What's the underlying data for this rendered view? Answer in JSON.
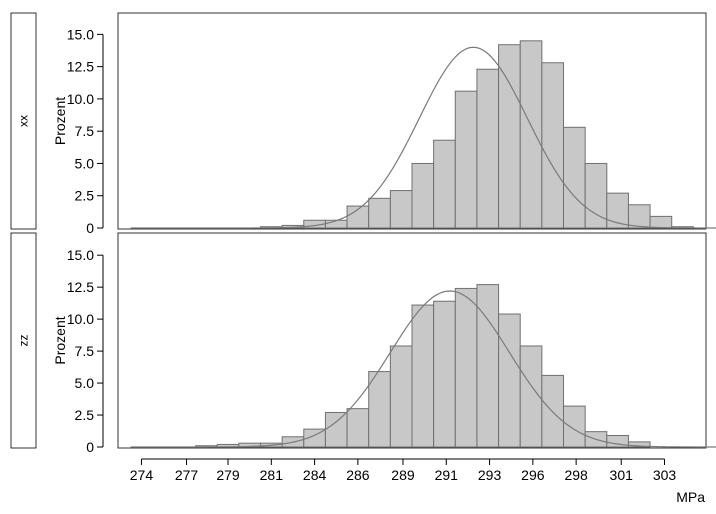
{
  "chart_data": {
    "type": "bar",
    "subtype": "histogram-panels",
    "xlabel": "MPa",
    "ylabel": "Prozent",
    "xlim": [
      272.7,
      305.3
    ],
    "ylim": [
      0,
      16.5
    ],
    "x_ticks": [
      {
        "value": 274,
        "label": "274"
      },
      {
        "value": 276.5,
        "label": "277"
      },
      {
        "value": 278.8,
        "label": "279"
      },
      {
        "value": 281.2,
        "label": "281"
      },
      {
        "value": 283.6,
        "label": "284"
      },
      {
        "value": 286,
        "label": "286"
      },
      {
        "value": 288.5,
        "label": "289"
      },
      {
        "value": 290.9,
        "label": "291"
      },
      {
        "value": 293.3,
        "label": "293"
      },
      {
        "value": 295.7,
        "label": "296"
      },
      {
        "value": 298.1,
        "label": "298"
      },
      {
        "value": 300.6,
        "label": "301"
      },
      {
        "value": 303,
        "label": "303"
      }
    ],
    "y_ticks": [
      {
        "value": 0,
        "label": "0"
      },
      {
        "value": 2.5,
        "label": "2.5"
      },
      {
        "value": 5,
        "label": "5.0"
      },
      {
        "value": 7.5,
        "label": "7.5"
      },
      {
        "value": 10,
        "label": "10.0"
      },
      {
        "value": 12.5,
        "label": "12.5"
      },
      {
        "value": 15,
        "label": "15.0"
      }
    ],
    "grid": false,
    "bin_start": 273.4,
    "bin_width": 1.2,
    "panels": [
      {
        "label": "xx",
        "values": [
          0,
          0,
          0,
          0,
          0,
          0,
          0.1,
          0.2,
          0.6,
          0.6,
          1.7,
          2.3,
          2.9,
          5,
          6.8,
          10.6,
          12.3,
          14.2,
          14.5,
          12.8,
          7.8,
          5,
          2.7,
          1.8,
          0.9,
          0.1,
          0,
          0
        ],
        "curve": {
          "mean": 292.4,
          "sd": 3.0,
          "peak": 14.0
        }
      },
      {
        "label": "zz",
        "values": [
          0,
          0,
          0,
          0.1,
          0.2,
          0.3,
          0.3,
          0.8,
          1.4,
          2.7,
          3,
          5.9,
          7.9,
          11.1,
          11.4,
          12.4,
          12.7,
          10.4,
          7.9,
          5.6,
          3.2,
          1.2,
          0.9,
          0.4,
          0,
          0,
          0,
          0
        ],
        "curve": {
          "mean": 291.1,
          "sd": 3.3,
          "peak": 12.2
        }
      }
    ]
  }
}
